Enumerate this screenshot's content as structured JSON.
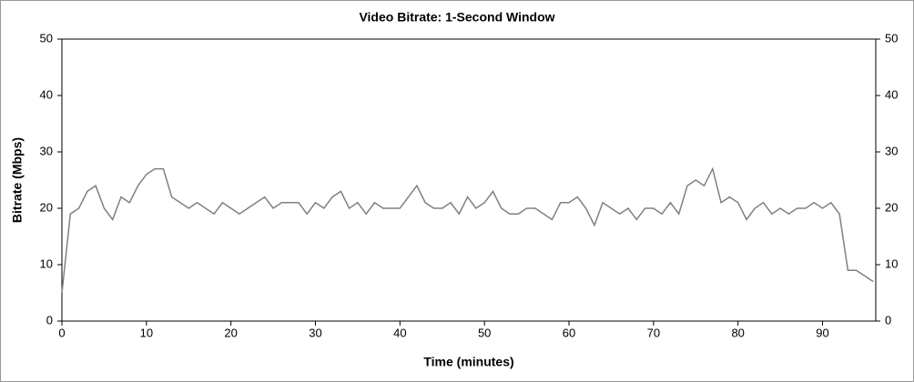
{
  "chart_data": {
    "type": "line",
    "title": "Video Bitrate: 1-Second Window",
    "x_label": "Time (minutes)",
    "y_label": "Bitrate (Mbps)",
    "x": [
      0,
      1,
      2,
      3,
      4,
      5,
      6,
      7,
      8,
      9,
      10,
      11,
      12,
      13,
      14,
      15,
      16,
      17,
      18,
      19,
      20,
      21,
      22,
      23,
      24,
      25,
      26,
      27,
      28,
      29,
      30,
      31,
      32,
      33,
      34,
      35,
      36,
      37,
      38,
      39,
      40,
      41,
      42,
      43,
      44,
      45,
      46,
      47,
      48,
      49,
      50,
      51,
      52,
      53,
      54,
      55,
      56,
      57,
      58,
      59,
      60,
      61,
      62,
      63,
      64,
      65,
      66,
      67,
      68,
      69,
      70,
      71,
      72,
      73,
      74,
      75,
      76,
      77,
      78,
      79,
      80,
      81,
      82,
      83,
      84,
      85,
      86,
      87,
      88,
      89,
      90,
      91,
      92,
      93,
      94,
      95,
      96
    ],
    "series": [
      {
        "name": "Bitrate",
        "color": "#808080",
        "values": [
          5,
          19,
          20,
          23,
          24,
          20,
          18,
          22,
          21,
          24,
          26,
          27,
          27,
          22,
          21,
          20,
          21,
          20,
          19,
          21,
          20,
          19,
          20,
          21,
          22,
          20,
          21,
          21,
          21,
          19,
          21,
          20,
          22,
          23,
          20,
          21,
          19,
          21,
          20,
          20,
          20,
          22,
          24,
          21,
          20,
          20,
          21,
          19,
          22,
          20,
          21,
          23,
          20,
          19,
          19,
          20,
          20,
          19,
          18,
          21,
          21,
          22,
          20,
          17,
          21,
          20,
          19,
          20,
          18,
          20,
          20,
          19,
          21,
          19,
          24,
          25,
          24,
          27,
          21,
          22,
          21,
          18,
          20,
          21,
          19,
          20,
          19,
          20,
          20,
          21,
          20,
          21,
          19,
          9,
          9,
          8,
          7
        ]
      }
    ],
    "xlim": [
      0,
      96.3
    ],
    "xticks": [
      0,
      10,
      20,
      30,
      40,
      50,
      60,
      70,
      80,
      90
    ],
    "ylim": [
      0,
      50
    ],
    "yticks": [
      0,
      10,
      20,
      30,
      40,
      50
    ],
    "y2lim": [
      0,
      50
    ],
    "y2ticks": [
      0,
      10,
      20,
      30,
      40,
      50
    ]
  }
}
